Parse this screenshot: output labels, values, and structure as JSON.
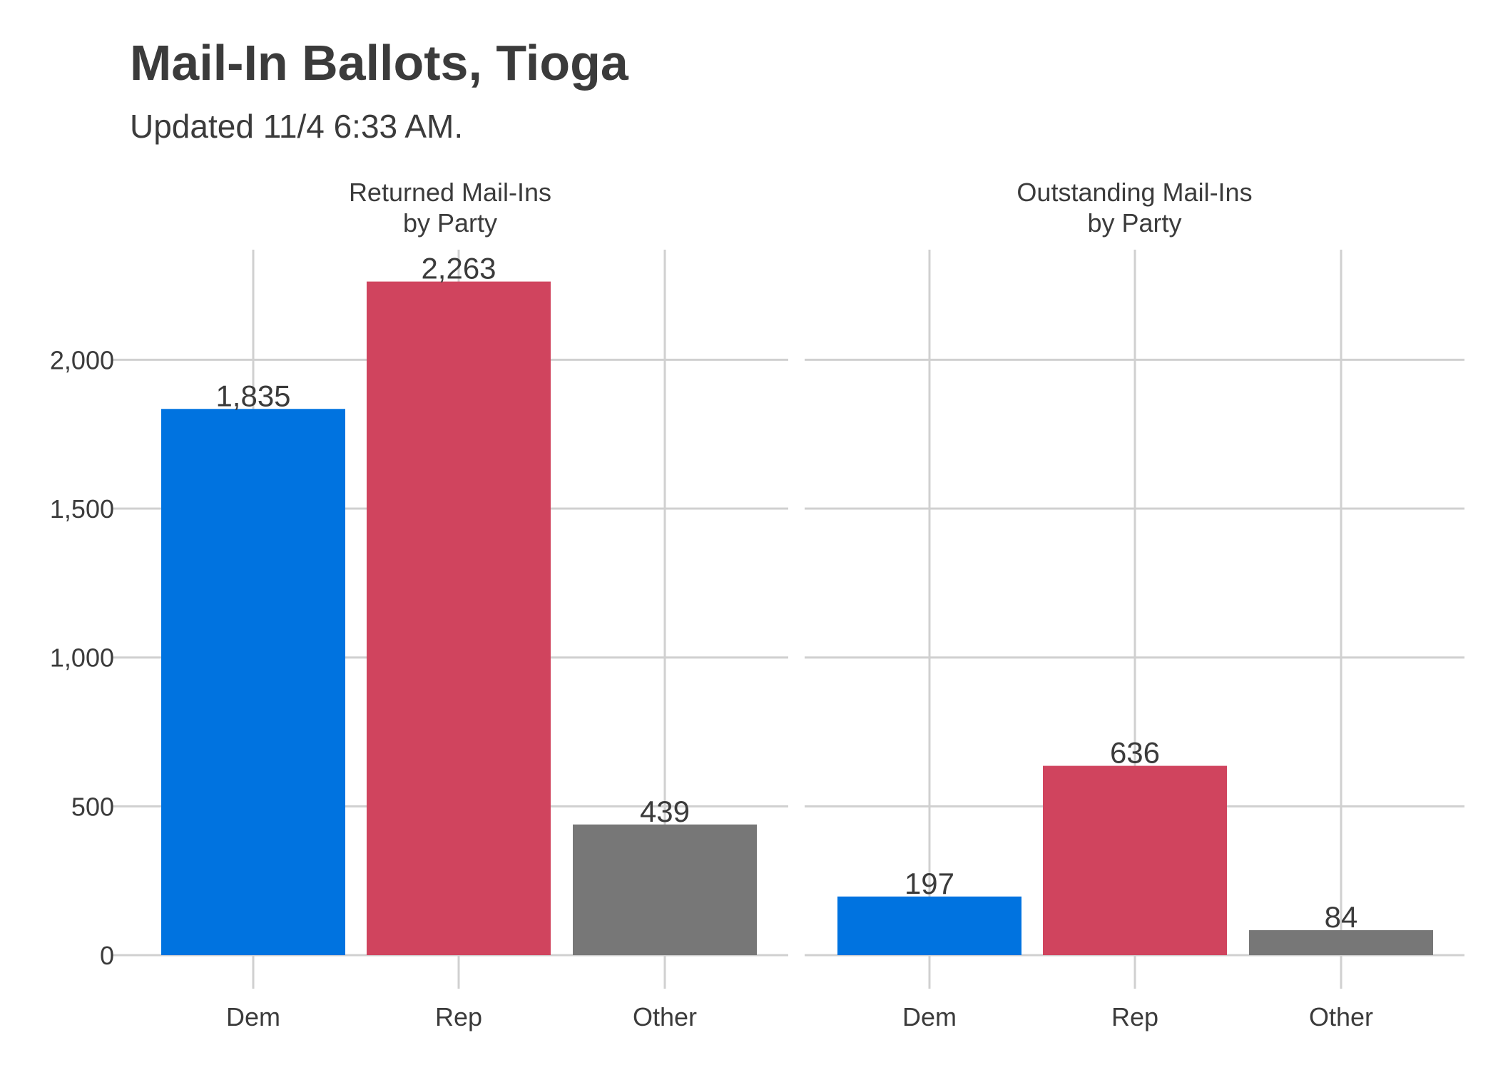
{
  "title": "Mail-In Ballots, Tioga",
  "subtitle": "Updated 11/4 6:33 AM.",
  "colors": {
    "Dem": "#0073e0",
    "Rep": "#d0445e",
    "Other": "#777777"
  },
  "chart_data": {
    "type": "bar",
    "title": "Mail-In Ballots, Tioga",
    "subtitle": "Updated 11/4 6:33 AM.",
    "xlabel": "",
    "ylabel": "",
    "ylim": [
      0,
      2263
    ],
    "yticks": [
      0,
      500,
      1000,
      1500,
      2000
    ],
    "ytick_labels": [
      "0",
      "500",
      "1,000",
      "1,500",
      "2,000"
    ],
    "grid": true,
    "legend": "none",
    "panels": [
      {
        "label_lines": [
          "Returned Mail-Ins",
          "by Party"
        ],
        "categories": [
          "Dem",
          "Rep",
          "Other"
        ],
        "values": [
          1835,
          2263,
          439
        ],
        "value_labels": [
          "1,835",
          "2,263",
          "439"
        ]
      },
      {
        "label_lines": [
          "Outstanding Mail-Ins",
          "by Party"
        ],
        "categories": [
          "Dem",
          "Rep",
          "Other"
        ],
        "values": [
          197,
          636,
          84
        ],
        "value_labels": [
          "197",
          "636",
          "84"
        ]
      }
    ]
  }
}
